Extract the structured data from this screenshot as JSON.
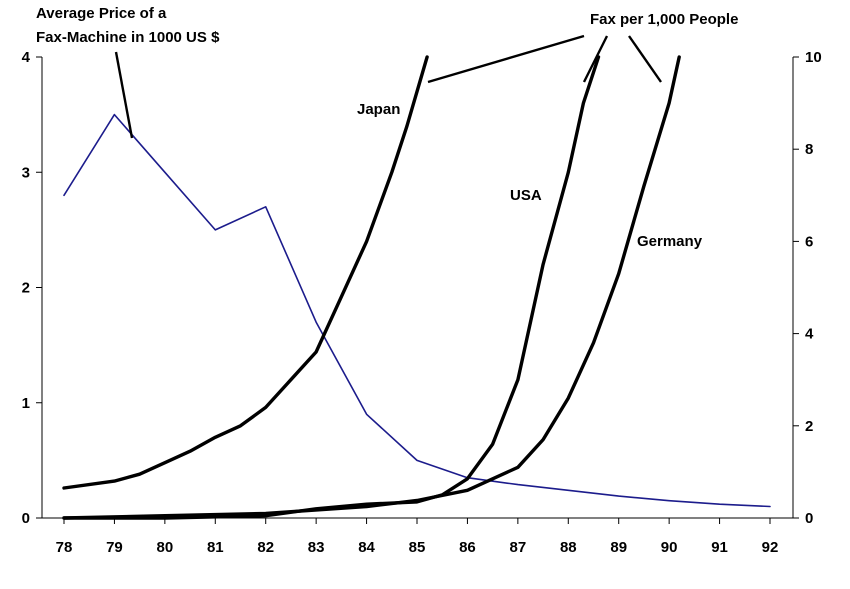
{
  "colors": {
    "background": "#ffffff",
    "axis": "#000000",
    "price_line": "#1c1c8c",
    "fax_lines": "#000000"
  },
  "chart_data": {
    "type": "line",
    "title": "",
    "x": [
      78,
      79,
      80,
      81,
      82,
      83,
      84,
      85,
      86,
      87,
      88,
      89,
      90,
      91,
      92
    ],
    "xlabel": "",
    "x_tick_labels": [
      "78",
      "79",
      "80",
      "81",
      "82",
      "83",
      "84",
      "85",
      "86",
      "87",
      "88",
      "89",
      "90",
      "91",
      "92"
    ],
    "xlim": [
      78,
      92
    ],
    "left_axis": {
      "ylabel": "",
      "ylim": [
        0,
        4
      ],
      "ticks": [
        "0",
        "1",
        "2",
        "3",
        "4"
      ]
    },
    "right_axis": {
      "ylabel": "",
      "ylim": [
        0,
        10
      ],
      "ticks": [
        "0",
        "2",
        "4",
        "6",
        "8",
        "10"
      ]
    },
    "grid": false,
    "legend": "none",
    "series": [
      {
        "axis": "left",
        "color": "#1c1c8c",
        "x": [
          78,
          79,
          80,
          81,
          82,
          83,
          84,
          85,
          86,
          87,
          88,
          89,
          90,
          91,
          92
        ],
        "values": [
          2.8,
          3.5,
          3.0,
          2.5,
          2.7,
          1.7,
          0.9,
          0.5,
          0.35,
          0.29,
          0.24,
          0.19,
          0.15,
          0.12,
          0.1
        ]
      },
      {
        "axis": "right",
        "color": "#000000",
        "x": [
          78,
          79,
          79.5,
          80,
          80.5,
          81,
          81.5,
          82,
          82.5,
          83,
          83.5,
          84,
          84.5,
          84.8,
          85.2
        ],
        "values": [
          0.65,
          0.8,
          0.95,
          1.2,
          1.45,
          1.75,
          2.0,
          2.4,
          3.0,
          3.6,
          4.8,
          6.0,
          7.5,
          8.5,
          10.0
        ]
      },
      {
        "axis": "right",
        "color": "#000000",
        "x": [
          78,
          80,
          82,
          83,
          84,
          85,
          85.5,
          86,
          86.5,
          87,
          87.5,
          88,
          88.3,
          88.6
        ],
        "values": [
          0,
          0,
          0.05,
          0.2,
          0.3,
          0.35,
          0.5,
          0.85,
          1.6,
          3.0,
          5.5,
          7.5,
          9.0,
          10.0
        ]
      },
      {
        "axis": "right",
        "color": "#000000",
        "x": [
          78,
          80,
          82,
          84,
          85,
          86,
          87,
          87.5,
          88,
          88.5,
          89,
          89.5,
          90,
          90.2
        ],
        "values": [
          0,
          0.05,
          0.1,
          0.25,
          0.38,
          0.6,
          1.1,
          1.7,
          2.6,
          3.8,
          5.3,
          7.2,
          9.0,
          10.0
        ]
      }
    ],
    "annotations": {
      "price_label_line1": "Average Price of a",
      "price_label_line2": "Fax-Machine in 1000 US $",
      "fax_label": "Fax per 1,000 People",
      "japan_label": "Japan",
      "usa_label": "USA",
      "germany_label": "Germany"
    }
  }
}
